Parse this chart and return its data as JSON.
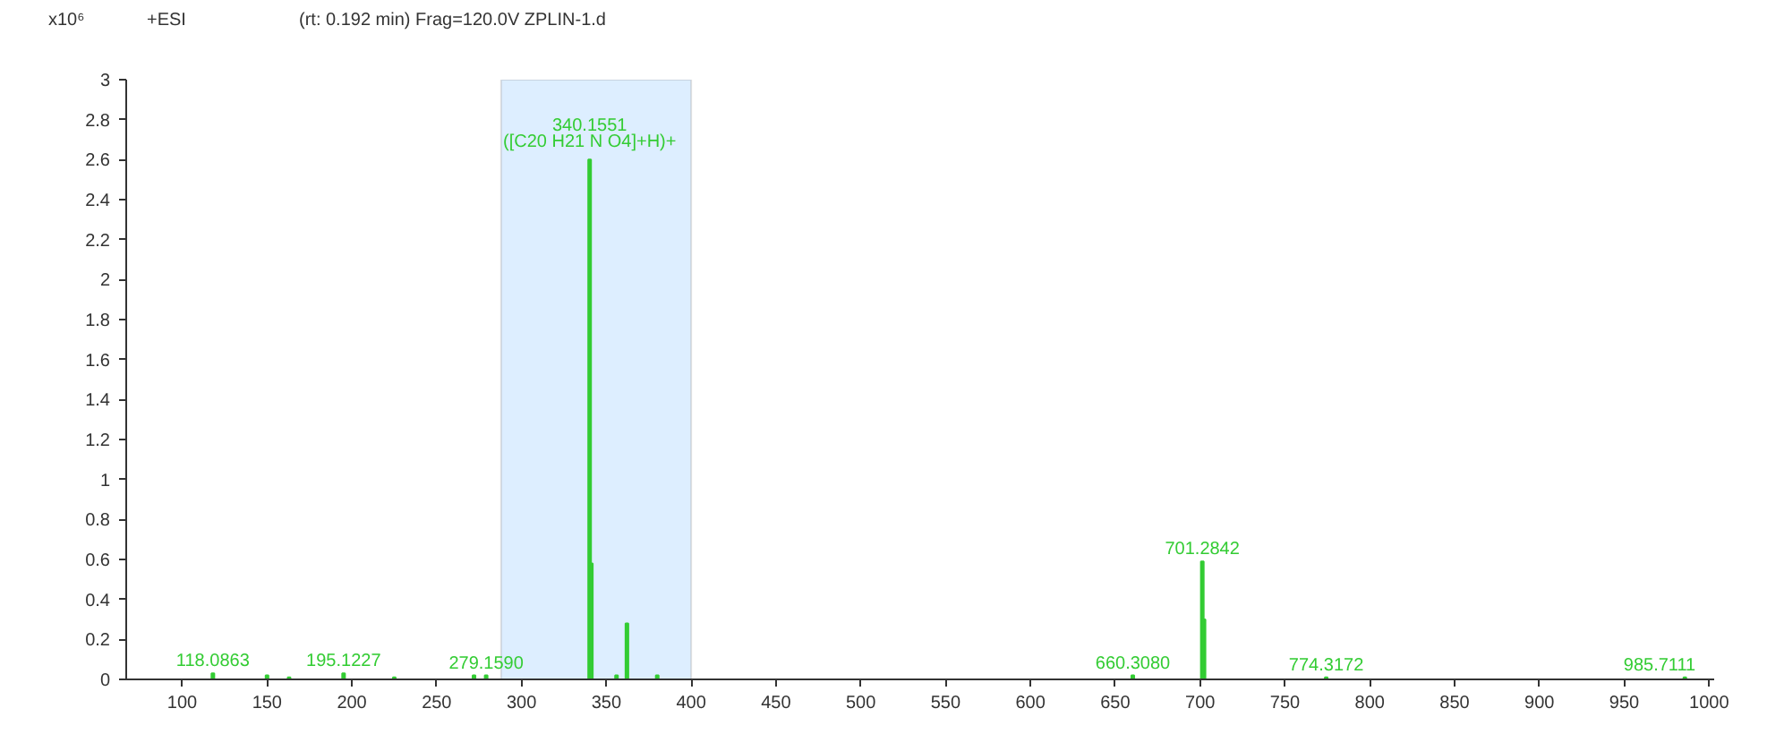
{
  "chart_data": {
    "type": "bar",
    "title": "+ESI",
    "subtitle": "(rt: 0.192 min) Frag=120.0V ZPLIN-1.d",
    "ylabel": "x10⁶",
    "x": [
      118.0863,
      150,
      163,
      195.1227,
      225,
      272,
      279.159,
      340.1551,
      341.16,
      356,
      362.14,
      380,
      660.308,
      701.2842,
      702.29,
      774.3172,
      985.7111
    ],
    "values": [
      0.03,
      0.02,
      0.01,
      0.03,
      0.01,
      0.02,
      0.02,
      2.6,
      0.58,
      0.02,
      0.28,
      0.02,
      0.02,
      0.59,
      0.3,
      0.01,
      0.01
    ],
    "color": "#33cc33",
    "xlim": [
      67,
      1003
    ],
    "xticks": [
      100,
      150,
      200,
      250,
      300,
      350,
      400,
      450,
      500,
      550,
      600,
      650,
      700,
      750,
      800,
      850,
      900,
      950,
      1000
    ],
    "ylim": [
      0,
      3
    ],
    "yticks": [
      0,
      0.2,
      0.4,
      0.6,
      0.8,
      1,
      1.2,
      1.4,
      1.6,
      1.8,
      2,
      2.2,
      2.4,
      2.6,
      2.8,
      3
    ],
    "grid": false,
    "bands": [
      {
        "axis": "x",
        "from": 288,
        "to": 400,
        "color": "#ddeeff"
      }
    ],
    "annotations": [
      {
        "text": "118.0863",
        "x": 118.0863,
        "y": 0.03
      },
      {
        "text": "195.1227",
        "x": 195.1227,
        "y": 0.03
      },
      {
        "text": "279.1590",
        "x": 279.159,
        "y": 0.02
      },
      {
        "text": "340.1551\n([C20 H21 N O4]+H)+",
        "x": 340.1551,
        "y": 2.6
      },
      {
        "text": "660.3080",
        "x": 660.308,
        "y": 0.02
      },
      {
        "text": "701.2842",
        "x": 701.2842,
        "y": 0.59
      },
      {
        "text": "774.3172",
        "x": 774.3172,
        "y": 0.01
      },
      {
        "text": "985.7111",
        "x": 985.7111,
        "y": 0.01
      }
    ]
  }
}
